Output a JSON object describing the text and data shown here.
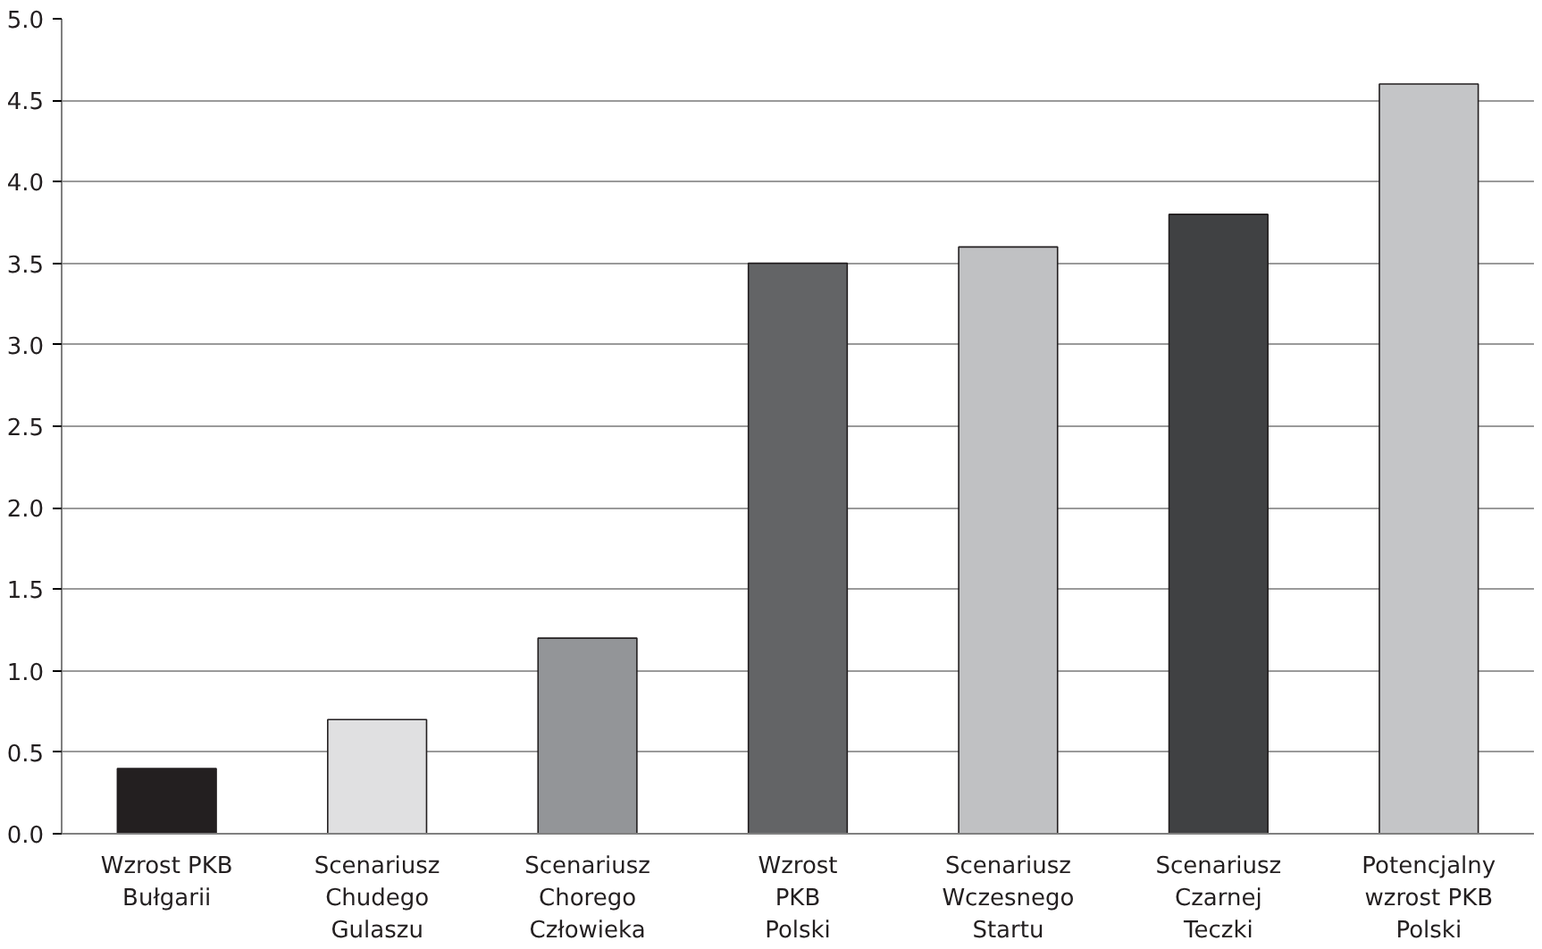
{
  "chart_data": {
    "type": "bar",
    "categories": [
      "Wzrost PKB\nBułgarii",
      "Scenariusz\nChudego\nGulaszu",
      "Scenariusz\nChorego\nCzłowieka",
      "Wzrost\nPKB\nPolski",
      "Scenariusz\nWczesnego\nStartu",
      "Scenariusz\nCzarnej\nTeczki",
      "Potencjalny\nwzrost PKB\nPolski"
    ],
    "values": [
      0.4,
      0.7,
      1.2,
      3.5,
      3.6,
      3.8,
      4.6
    ],
    "colors": [
      "#231f20",
      "#e0e0e1",
      "#939598",
      "#636466",
      "#c0c1c3",
      "#404143",
      "#c4c5c7"
    ],
    "ylim": [
      0,
      5
    ],
    "yticks": [
      {
        "value": 0,
        "label": "0.0"
      },
      {
        "value": 0.5,
        "label": "0.5"
      },
      {
        "value": 1,
        "label": "1.0"
      },
      {
        "value": 1.5,
        "label": "1.5"
      },
      {
        "value": 2,
        "label": "2.0"
      },
      {
        "value": 2.5,
        "label": "2.5"
      },
      {
        "value": 3,
        "label": "3.0"
      },
      {
        "value": 3.5,
        "label": "3.5"
      },
      {
        "value": 4,
        "label": "4.0"
      },
      {
        "value": 4.5,
        "label": "4.5"
      },
      {
        "value": 5,
        "label": "5.0"
      }
    ],
    "grid": "y"
  }
}
